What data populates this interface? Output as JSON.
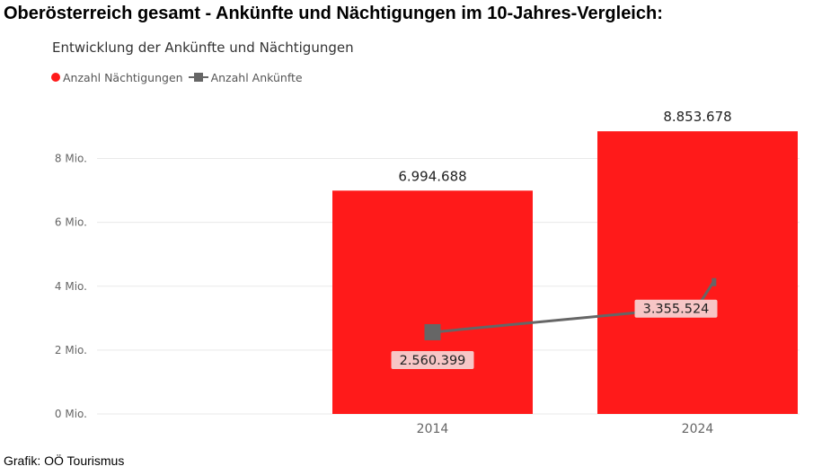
{
  "page": {
    "title": "Oberösterreich gesamt - Ankünfte und Nächtigungen im 10-Jahres-Vergleich:",
    "footer": "Grafik: OÖ Tourismus"
  },
  "chart_data": {
    "type": "bar",
    "title": "Entwicklung der Ankünfte und Nächtigungen",
    "categories": [
      "2014",
      "2024"
    ],
    "ylim": [
      0,
      9000000
    ],
    "yticks": [
      {
        "value": 0,
        "label": "0 Mio."
      },
      {
        "value": 2000000,
        "label": "2 Mio."
      },
      {
        "value": 4000000,
        "label": "4 Mio."
      },
      {
        "value": 6000000,
        "label": "6 Mio."
      },
      {
        "value": 8000000,
        "label": "8 Mio."
      }
    ],
    "grid": true,
    "legend_position": "top-left",
    "series": [
      {
        "name": "Anzahl Nächtigungen",
        "kind": "bar",
        "color": "#ff1a1a",
        "values": [
          6994688,
          8853678
        ],
        "labels": [
          "6.994.688",
          "8.853.678"
        ]
      },
      {
        "name": "Anzahl Ankünfte",
        "kind": "line",
        "color": "#666666",
        "values": [
          2560399,
          3355524
        ],
        "labels": [
          "2.560.399",
          "3.355.524"
        ]
      }
    ]
  }
}
